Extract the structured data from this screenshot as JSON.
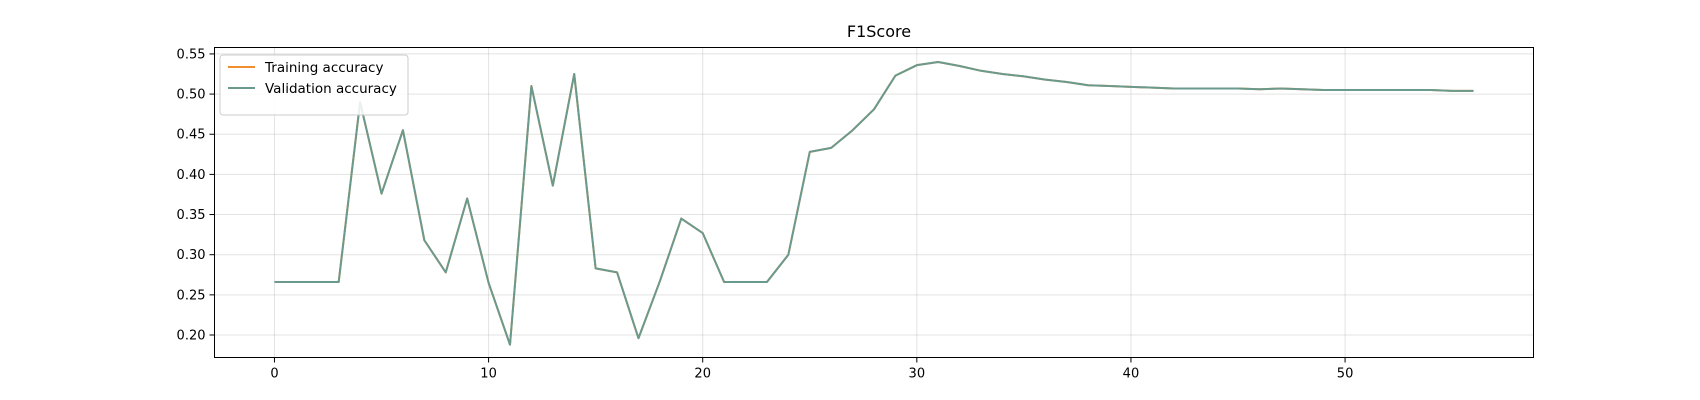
{
  "chart_data": {
    "type": "line",
    "title": "F1Score",
    "xlabel": "",
    "ylabel": "",
    "xlim": [
      -2.8,
      58.8
    ],
    "ylim": [
      0.172,
      0.558
    ],
    "xticks": [
      0,
      10,
      20,
      30,
      40,
      50
    ],
    "yticks": [
      0.2,
      0.25,
      0.3,
      0.35,
      0.4,
      0.45,
      0.5,
      0.55
    ],
    "ytick_labels": [
      "0.20",
      "0.25",
      "0.30",
      "0.35",
      "0.40",
      "0.45",
      "0.50",
      "0.55"
    ],
    "grid": true,
    "legend": "upper-left",
    "x": [
      0,
      1,
      2,
      3,
      4,
      5,
      6,
      7,
      8,
      9,
      10,
      11,
      12,
      13,
      14,
      15,
      16,
      17,
      18,
      19,
      20,
      21,
      22,
      23,
      24,
      25,
      26,
      27,
      28,
      29,
      30,
      31,
      32,
      33,
      34,
      35,
      36,
      37,
      38,
      39,
      40,
      41,
      42,
      43,
      44,
      45,
      46,
      47,
      48,
      49,
      50,
      51,
      52,
      53,
      54,
      55,
      56
    ],
    "series": [
      {
        "name": "Training accuracy",
        "color": "#f28e2b",
        "values": [
          0.266,
          0.266,
          0.266,
          0.266,
          0.49,
          0.376,
          0.455,
          0.318,
          0.278,
          0.37,
          0.265,
          0.188,
          0.51,
          0.386,
          0.525,
          0.283,
          0.278,
          0.196,
          0.267,
          0.345,
          0.327,
          0.266,
          0.266,
          0.266,
          0.3,
          0.428,
          0.433,
          0.455,
          0.481,
          0.523,
          0.536,
          0.54,
          0.535,
          0.529,
          0.525,
          0.522,
          0.518,
          0.515,
          0.511,
          0.51,
          0.509,
          0.508,
          0.507,
          0.507,
          0.507,
          0.507,
          0.506,
          0.507,
          0.506,
          0.505,
          0.505,
          0.505,
          0.505,
          0.505,
          0.505,
          0.504,
          0.504
        ]
      },
      {
        "name": "Validation accuracy",
        "color": "#6a9a8e",
        "values": [
          0.266,
          0.266,
          0.266,
          0.266,
          0.49,
          0.376,
          0.455,
          0.318,
          0.278,
          0.37,
          0.265,
          0.188,
          0.51,
          0.386,
          0.525,
          0.283,
          0.278,
          0.196,
          0.267,
          0.345,
          0.327,
          0.266,
          0.266,
          0.266,
          0.3,
          0.428,
          0.433,
          0.455,
          0.481,
          0.523,
          0.536,
          0.54,
          0.535,
          0.529,
          0.525,
          0.522,
          0.518,
          0.515,
          0.511,
          0.51,
          0.509,
          0.508,
          0.507,
          0.507,
          0.507,
          0.507,
          0.506,
          0.507,
          0.506,
          0.505,
          0.505,
          0.505,
          0.505,
          0.505,
          0.505,
          0.504,
          0.504
        ]
      }
    ]
  }
}
